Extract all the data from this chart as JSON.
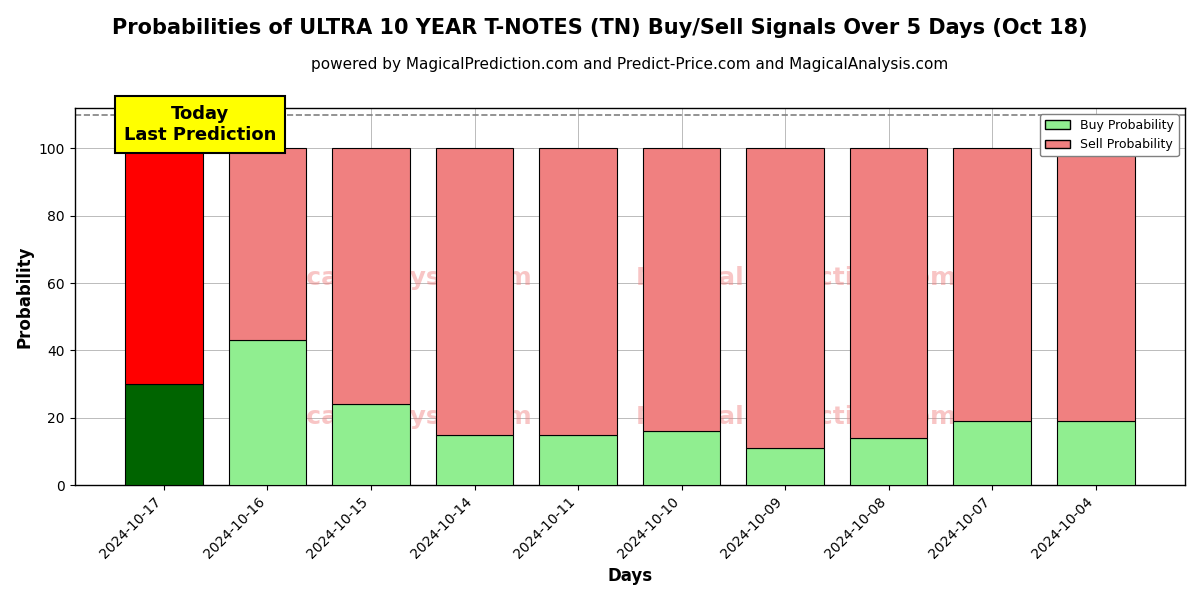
{
  "title": "Probabilities of ULTRA 10 YEAR T-NOTES (TN) Buy/Sell Signals Over 5 Days (Oct 18)",
  "subtitle": "powered by MagicalPrediction.com and Predict-Price.com and MagicalAnalysis.com",
  "xlabel": "Days",
  "ylabel": "Probability",
  "categories": [
    "2024-10-17",
    "2024-10-16",
    "2024-10-15",
    "2024-10-14",
    "2024-10-11",
    "2024-10-10",
    "2024-10-09",
    "2024-10-08",
    "2024-10-07",
    "2024-10-04"
  ],
  "buy_values": [
    30,
    43,
    24,
    15,
    15,
    16,
    11,
    14,
    19,
    19
  ],
  "sell_values": [
    70,
    57,
    76,
    85,
    85,
    84,
    89,
    86,
    81,
    81
  ],
  "today_bar_buy_color": "#006400",
  "today_bar_sell_color": "#FF0000",
  "other_bar_buy_color": "#90EE90",
  "other_bar_sell_color": "#F08080",
  "bar_edge_color": "#000000",
  "ylim": [
    0,
    112
  ],
  "yticks": [
    0,
    20,
    40,
    60,
    80,
    100
  ],
  "dashed_line_y": 110,
  "annotation_text": "Today\nLast Prediction",
  "annotation_bg_color": "#FFFF00",
  "watermark_color": "#F08080",
  "watermark_alpha": 0.45,
  "title_fontsize": 15,
  "subtitle_fontsize": 11,
  "axis_label_fontsize": 12,
  "tick_fontsize": 10,
  "legend_buy_label": "Buy Probability",
  "legend_sell_label": "Sell Probability",
  "fig_width": 12,
  "fig_height": 6,
  "background_color": "#ffffff",
  "grid_color": "#bbbbbb",
  "bar_width": 0.75
}
